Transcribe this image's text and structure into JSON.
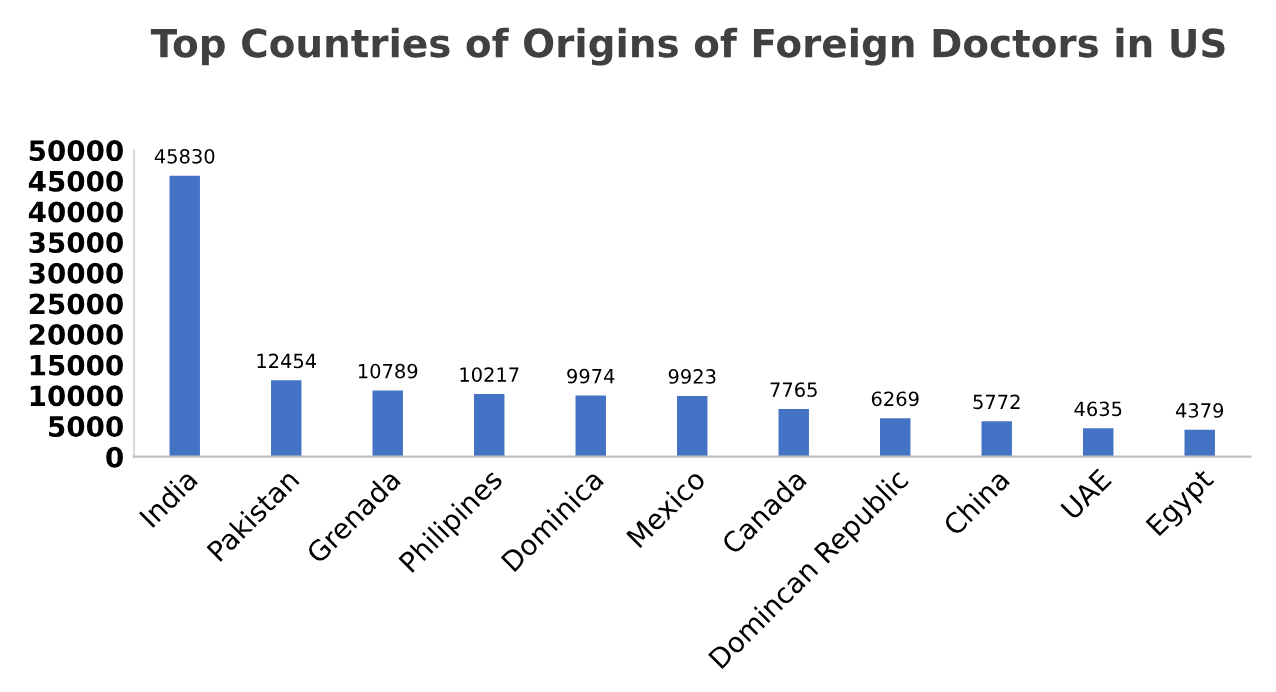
{
  "chart_data": {
    "type": "bar",
    "title": "Top Countries of Origins of Foreign Doctors in US",
    "categories": [
      "India",
      "Pakistan",
      "Grenada",
      "Philipines",
      "Dominica",
      "Mexico",
      "Canada",
      "Domincan Republic",
      "China",
      "UAE",
      "Egypt"
    ],
    "values": [
      45830,
      12454,
      10789,
      10217,
      9974,
      9923,
      7765,
      6269,
      5772,
      4635,
      4379
    ],
    "color": "#4472c4",
    "ylim": [
      0,
      50000
    ],
    "yticks": [
      0,
      5000,
      10000,
      15000,
      20000,
      25000,
      30000,
      35000,
      40000,
      45000,
      50000
    ],
    "data_labels": true,
    "grid": false,
    "legend": false
  }
}
